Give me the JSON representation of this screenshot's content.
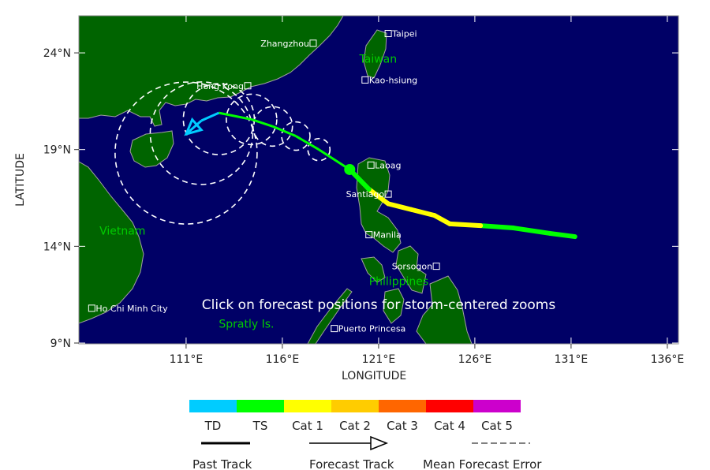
{
  "map": {
    "xlabel": "LONGITUDE",
    "ylabel": "LATITUDE",
    "lon_ticks": [
      "111°E",
      "116°E",
      "121°E",
      "126°E",
      "131°E",
      "136°E"
    ],
    "lat_ticks": [
      "24°N",
      "19°N",
      "14°N",
      "9°N"
    ],
    "colors": {
      "ocean": "#000066",
      "land": "#006400",
      "coast": "#a0a0a0",
      "country_label": "#00cc00"
    },
    "cities": [
      {
        "name": "Zhangzhou",
        "lon": 117.6,
        "lat": 24.5,
        "side": "left"
      },
      {
        "name": "Taipei",
        "lon": 121.5,
        "lat": 25.0,
        "side": "right"
      },
      {
        "name": "Kao-hsiung",
        "lon": 120.3,
        "lat": 22.6,
        "side": "right"
      },
      {
        "name": "Hong Kong",
        "lon": 114.2,
        "lat": 22.3,
        "side": "left"
      },
      {
        "name": "Laoag",
        "lon": 120.6,
        "lat": 18.2,
        "side": "right"
      },
      {
        "name": "Santiago",
        "lon": 121.5,
        "lat": 16.7,
        "side": "left"
      },
      {
        "name": "Manila",
        "lon": 120.5,
        "lat": 14.6,
        "side": "right"
      },
      {
        "name": "Sorsogon",
        "lon": 124.0,
        "lat": 12.97,
        "side": "left"
      },
      {
        "name": "Ho Chi Minh City",
        "lon": 106.1,
        "lat": 10.8,
        "side": "right"
      },
      {
        "name": "Puerto Princesa",
        "lon": 118.7,
        "lat": 9.75,
        "side": "right"
      }
    ],
    "countries": [
      {
        "name": "Taiwan",
        "lon": 120.0,
        "lat": 23.5
      },
      {
        "name": "Vietnam",
        "lon": 106.5,
        "lat": 14.6
      },
      {
        "name": "Philippines",
        "lon": 120.5,
        "lat": 12.0
      },
      {
        "name": "Spratly Is.",
        "lon": 112.7,
        "lat": 9.8
      }
    ],
    "click_hint": "Click on forecast positions for storm-centered zooms",
    "past_track": [
      {
        "lon": 131.2,
        "lat": 14.5,
        "cat": "TD"
      },
      {
        "lon": 129.9,
        "lat": 14.67,
        "cat": "TS"
      },
      {
        "lon": 128.0,
        "lat": 14.95,
        "cat": "TS"
      },
      {
        "lon": 126.3,
        "lat": 15.07,
        "cat": "TS"
      },
      {
        "lon": 124.7,
        "lat": 15.16,
        "cat": "Cat 1"
      },
      {
        "lon": 123.9,
        "lat": 15.6,
        "cat": "Cat 1"
      },
      {
        "lon": 122.7,
        "lat": 15.9,
        "cat": "Cat 1"
      },
      {
        "lon": 121.5,
        "lat": 16.2,
        "cat": "Cat 1"
      },
      {
        "lon": 120.5,
        "lat": 16.95,
        "cat": "Cat 1"
      },
      {
        "lon": 119.5,
        "lat": 17.97,
        "cat": "TS"
      }
    ],
    "forecast_track": [
      {
        "lon": 119.5,
        "lat": 17.97,
        "cat": "TS"
      },
      {
        "lon": 117.9,
        "lat": 19.0,
        "cat": "TS"
      },
      {
        "lon": 116.7,
        "lat": 19.7,
        "cat": "TS"
      },
      {
        "lon": 115.5,
        "lat": 20.2,
        "cat": "TS"
      },
      {
        "lon": 114.4,
        "lat": 20.56,
        "cat": "TS"
      },
      {
        "lon": 112.7,
        "lat": 20.9,
        "cat": "TS"
      },
      {
        "lon": 111.8,
        "lat": 20.5,
        "cat": "TD"
      },
      {
        "lon": 111.0,
        "lat": 19.8,
        "cat": "TD"
      }
    ]
  },
  "legend": {
    "categories": [
      {
        "label": "TD",
        "color": "#00ccff"
      },
      {
        "label": "TS",
        "color": "#00ff00"
      },
      {
        "label": "Cat 1",
        "color": "#ffff00"
      },
      {
        "label": "Cat 2",
        "color": "#ffcc00"
      },
      {
        "label": "Cat 3",
        "color": "#ff6600"
      },
      {
        "label": "Cat 4",
        "color": "#ff0000"
      },
      {
        "label": "Cat 5",
        "color": "#cc00cc"
      }
    ],
    "past_track": "Past Track",
    "forecast_track": "Forecast Track",
    "mean_error": "Mean Forecast Error"
  }
}
